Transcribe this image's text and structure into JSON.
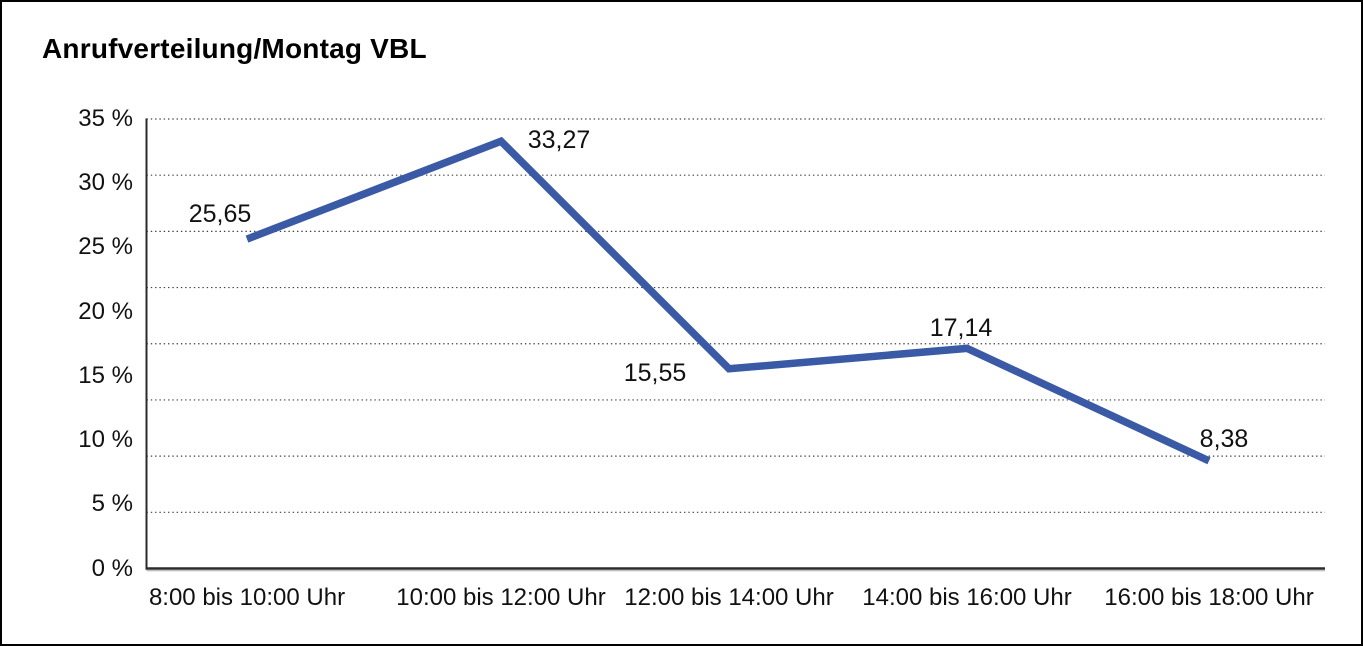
{
  "window": {
    "background": "#ffffff",
    "frame_border_color": "#000000"
  },
  "chart_data": {
    "type": "line",
    "title": "Anrufverteilung/Montag VBL",
    "categories": [
      "8:00 bis 10:00 Uhr",
      "10:00 bis 12:00 Uhr",
      "12:00 bis 14:00 Uhr",
      "14:00 bis 16:00 Uhr",
      "16:00 bis 18:00 Uhr"
    ],
    "values": [
      25.65,
      33.27,
      15.55,
      17.14,
      8.38
    ],
    "point_labels": [
      "25,65",
      "33,27",
      "15,55",
      "17,14",
      "8,38"
    ],
    "ytick_labels": [
      "35 %",
      "30 %",
      "25 %",
      "20 %",
      "15 %",
      "10 %",
      "5 %",
      "0 %"
    ],
    "xlabel": "",
    "ylabel": "",
    "yunit": "%",
    "ylim": [
      0,
      35
    ],
    "ytick_step": 5,
    "grid": "horizontal dotted",
    "legend": "none",
    "line_color": "#3B5AA5",
    "axis_color": "#2b2b2b",
    "grid_color": "#404040",
    "text_color": "#111111"
  }
}
